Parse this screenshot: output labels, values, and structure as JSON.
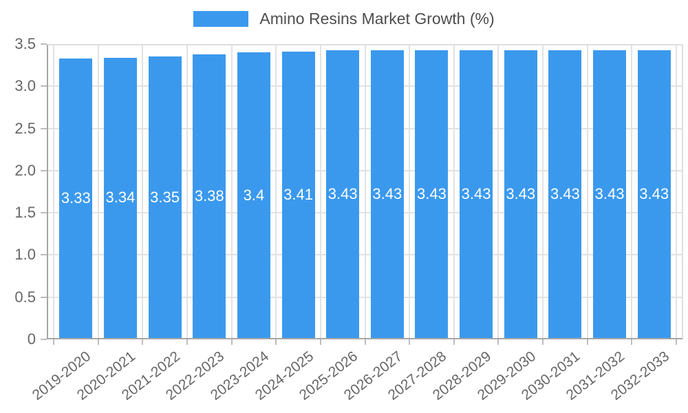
{
  "legend": {
    "label": "Amino Resins Market Growth (%)"
  },
  "chart_data": {
    "type": "bar",
    "title": "Amino Resins Market Growth (%)",
    "categories": [
      "2019-2020",
      "2020-2021",
      "2021-2022",
      "2022-2023",
      "2023-2024",
      "2024-2025",
      "2025-2026",
      "2026-2027",
      "2027-2028",
      "2028-2029",
      "2029-2030",
      "2030-2031",
      "2031-2032",
      "2032-2033"
    ],
    "values": [
      3.33,
      3.34,
      3.35,
      3.38,
      3.4,
      3.41,
      3.43,
      3.43,
      3.43,
      3.43,
      3.43,
      3.43,
      3.43,
      3.43
    ],
    "value_labels": [
      "3.33",
      "3.34",
      "3.35",
      "3.38",
      "3.4",
      "3.41",
      "3.43",
      "3.43",
      "3.43",
      "3.43",
      "3.43",
      "3.43",
      "3.43",
      "3.43"
    ],
    "xlabel": "",
    "ylabel": "",
    "ylim": [
      0,
      3.5
    ],
    "yticks": [
      {
        "value": 0,
        "label": "0"
      },
      {
        "value": 0.5,
        "label": "0.5"
      },
      {
        "value": 1,
        "label": "1.0"
      },
      {
        "value": 1.5,
        "label": "1.5"
      },
      {
        "value": 2,
        "label": "2.0"
      },
      {
        "value": 2.5,
        "label": "2.5"
      },
      {
        "value": 3,
        "label": "3.0"
      },
      {
        "value": 3.5,
        "label": "3.5"
      }
    ],
    "grid": true,
    "legend_position": "top-center",
    "colors": {
      "bar": "#3B99ED",
      "axis_line": "#a6a6a6",
      "frame": "#dedede",
      "gridline": "#e2e2e2",
      "tick_mark": "#bdbdbd",
      "tick_label": "#666666",
      "value_label": "#ffffff",
      "legend_text": "#4d4d4d",
      "background": "#ffffff"
    }
  }
}
